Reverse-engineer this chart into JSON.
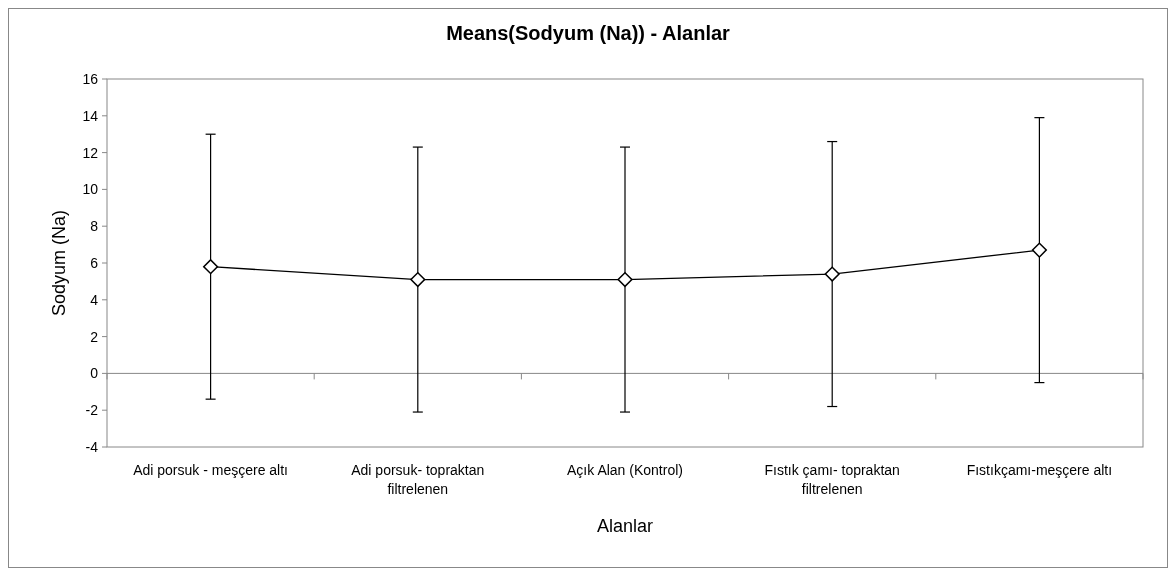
{
  "chart_data": {
    "type": "line",
    "title": "Means(Sodyum (Na)) - Alanlar",
    "xlabel": "Alanlar",
    "ylabel": "Sodyum (Na)",
    "categories": [
      "Adi porsuk - meşçere altı",
      "Adi porsuk- topraktan filtrelenen",
      "Açık Alan (Kontrol)",
      "Fıstık çamı- topraktan filtrelenen",
      "Fıstıkçamı-meşçere altı"
    ],
    "series": [
      {
        "color": "#000000",
        "values": [
          5.8,
          5.1,
          5.1,
          5.4,
          6.7
        ],
        "errors": [
          7.2,
          7.2,
          7.2,
          7.2,
          7.2
        ]
      }
    ],
    "ylim": [
      -4,
      16
    ],
    "yticks": [
      -4,
      -2,
      0,
      2,
      4,
      6,
      8,
      10,
      12,
      14,
      16
    ],
    "marker": "diamond",
    "line_style": "solid"
  }
}
